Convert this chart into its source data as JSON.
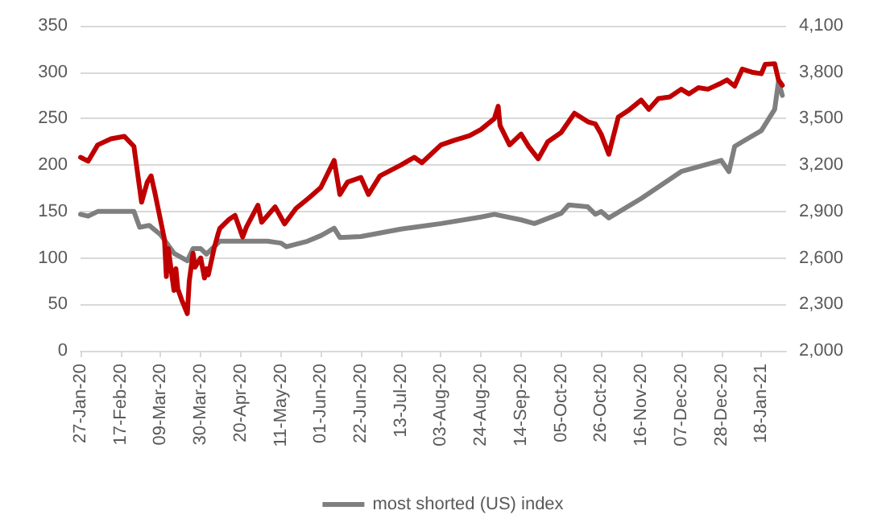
{
  "chart_data": {
    "type": "line",
    "grid": "y",
    "legend": "bottom",
    "line_style": "solid",
    "marker": "none",
    "xlim": [
      "2020-01-27",
      "2021-01-31"
    ],
    "xticks": [
      {
        "value": "2020-01-27",
        "label": "27-Jan-20"
      },
      {
        "value": "2020-02-17",
        "label": "17-Feb-20"
      },
      {
        "value": "2020-03-09",
        "label": "09-Mar-20"
      },
      {
        "value": "2020-03-30",
        "label": "30-Mar-20"
      },
      {
        "value": "2020-04-20",
        "label": "20-Apr-20"
      },
      {
        "value": "2020-05-11",
        "label": "11-May-20"
      },
      {
        "value": "2020-06-01",
        "label": "01-Jun-20"
      },
      {
        "value": "2020-06-22",
        "label": "22-Jun-20"
      },
      {
        "value": "2020-07-13",
        "label": "13-Jul-20"
      },
      {
        "value": "2020-08-03",
        "label": "03-Aug-20"
      },
      {
        "value": "2020-08-24",
        "label": "24-Aug-20"
      },
      {
        "value": "2020-09-14",
        "label": "14-Sep-20"
      },
      {
        "value": "2020-10-05",
        "label": "05-Oct-20"
      },
      {
        "value": "2020-10-26",
        "label": "26-Oct-20"
      },
      {
        "value": "2020-11-16",
        "label": "16-Nov-20"
      },
      {
        "value": "2020-12-07",
        "label": "07-Dec-20"
      },
      {
        "value": "2020-12-28",
        "label": "28-Dec-20"
      },
      {
        "value": "2021-01-18",
        "label": "18-Jan-21"
      }
    ],
    "ylim": [
      0,
      350
    ],
    "yticks": [
      0,
      50,
      100,
      150,
      200,
      250,
      300,
      350
    ],
    "y2lim": [
      2000,
      4100
    ],
    "y2ticks": [
      {
        "value": 2000,
        "label": "2,000"
      },
      {
        "value": 2300,
        "label": "2,300"
      },
      {
        "value": 2600,
        "label": "2,600"
      },
      {
        "value": 2900,
        "label": "2,900"
      },
      {
        "value": 3200,
        "label": "3,200"
      },
      {
        "value": 3500,
        "label": "3,500"
      },
      {
        "value": 3800,
        "label": "3,800"
      },
      {
        "value": 4100,
        "label": "4,100"
      }
    ],
    "series": [
      {
        "name": "most shorted (US) index",
        "color": "#7f7f7f",
        "x": [
          "2020-01-27",
          "2020-01-31",
          "2020-02-05",
          "2020-02-24",
          "2020-02-27",
          "2020-03-03",
          "2020-03-09",
          "2020-03-16",
          "2020-03-23",
          "2020-03-26",
          "2020-03-30",
          "2020-04-02",
          "2020-04-09",
          "2020-04-20",
          "2020-05-04",
          "2020-05-11",
          "2020-05-14",
          "2020-05-25",
          "2020-06-01",
          "2020-06-08",
          "2020-06-11",
          "2020-06-22",
          "2020-07-13",
          "2020-08-03",
          "2020-08-24",
          "2020-08-31",
          "2020-09-14",
          "2020-09-21",
          "2020-10-05",
          "2020-10-09",
          "2020-10-19",
          "2020-10-23",
          "2020-10-26",
          "2020-10-30",
          "2020-11-16",
          "2020-12-07",
          "2020-12-28",
          "2021-01-01",
          "2021-01-04",
          "2021-01-08",
          "2021-01-18",
          "2021-01-25",
          "2021-01-27",
          "2021-01-29"
        ],
        "values": [
          147,
          145,
          150,
          150,
          133,
          135,
          125,
          105,
          97,
          110,
          110,
          104,
          118,
          118,
          118,
          116,
          112,
          118,
          124,
          132,
          122,
          123,
          131,
          137,
          144,
          147,
          141,
          137,
          148,
          157,
          155,
          147,
          150,
          143,
          164,
          193,
          205,
          193,
          220,
          225,
          237,
          260,
          290,
          275
        ]
      },
      {
        "axis": "y2",
        "color": "#c00000",
        "x": [
          "2020-01-27",
          "2020-01-31",
          "2020-02-05",
          "2020-02-12",
          "2020-02-19",
          "2020-02-24",
          "2020-02-28",
          "2020-03-02",
          "2020-03-04",
          "2020-03-06",
          "2020-03-09",
          "2020-03-11",
          "2020-03-12",
          "2020-03-13",
          "2020-03-16",
          "2020-03-17",
          "2020-03-18",
          "2020-03-20",
          "2020-03-23",
          "2020-03-24",
          "2020-03-26",
          "2020-03-27",
          "2020-03-30",
          "2020-04-01",
          "2020-04-02",
          "2020-04-03",
          "2020-04-06",
          "2020-04-08",
          "2020-04-09",
          "2020-04-14",
          "2020-04-17",
          "2020-04-21",
          "2020-04-23",
          "2020-04-29",
          "2020-05-01",
          "2020-05-08",
          "2020-05-13",
          "2020-05-19",
          "2020-05-26",
          "2020-06-01",
          "2020-06-08",
          "2020-06-11",
          "2020-06-15",
          "2020-06-22",
          "2020-06-26",
          "2020-07-02",
          "2020-07-13",
          "2020-07-20",
          "2020-07-24",
          "2020-08-03",
          "2020-08-10",
          "2020-08-18",
          "2020-08-24",
          "2020-08-31",
          "2020-09-02",
          "2020-09-03",
          "2020-09-08",
          "2020-09-14",
          "2020-09-18",
          "2020-09-23",
          "2020-09-28",
          "2020-10-05",
          "2020-10-12",
          "2020-10-19",
          "2020-10-23",
          "2020-10-26",
          "2020-10-30",
          "2020-11-04",
          "2020-11-09",
          "2020-11-16",
          "2020-11-20",
          "2020-11-25",
          "2020-12-01",
          "2020-12-07",
          "2020-12-11",
          "2020-12-16",
          "2020-12-21",
          "2020-12-28",
          "2020-12-31",
          "2021-01-04",
          "2021-01-08",
          "2021-01-13",
          "2021-01-18",
          "2021-01-20",
          "2021-01-25",
          "2021-01-27",
          "2021-01-29"
        ],
        "values": [
          3250,
          3225,
          3330,
          3370,
          3385,
          3320,
          2960,
          3090,
          3130,
          3020,
          2840,
          2720,
          2480,
          2660,
          2390,
          2530,
          2400,
          2330,
          2240,
          2450,
          2630,
          2540,
          2600,
          2470,
          2530,
          2490,
          2660,
          2750,
          2790,
          2850,
          2875,
          2735,
          2800,
          2940,
          2830,
          2930,
          2820,
          2920,
          2990,
          3055,
          3230,
          3010,
          3090,
          3120,
          3010,
          3130,
          3200,
          3250,
          3215,
          3330,
          3360,
          3390,
          3430,
          3500,
          3580,
          3455,
          3330,
          3400,
          3320,
          3240,
          3350,
          3410,
          3535,
          3480,
          3465,
          3400,
          3270,
          3510,
          3550,
          3620,
          3560,
          3630,
          3640,
          3690,
          3660,
          3700,
          3690,
          3730,
          3750,
          3710,
          3820,
          3800,
          3790,
          3850,
          3855,
          3750,
          3715
        ]
      }
    ]
  }
}
